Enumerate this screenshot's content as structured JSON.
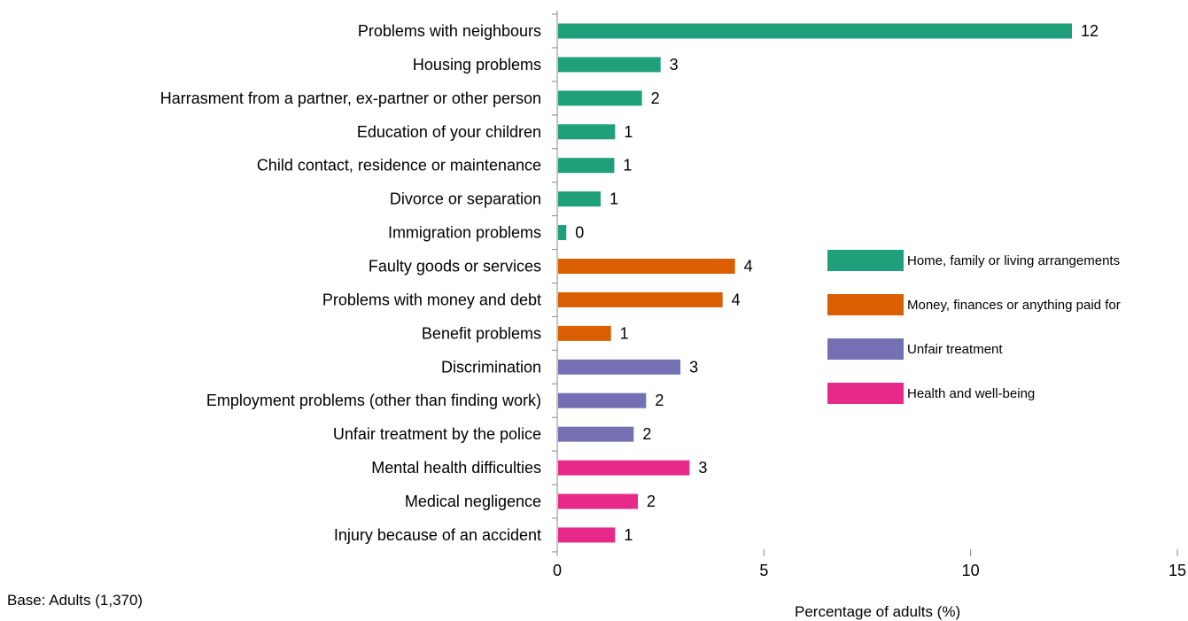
{
  "chart_data": {
    "type": "bar",
    "orientation": "horizontal",
    "categories": [
      "Problems with neighbours",
      "Housing problems",
      "Harrasment from a partner, ex-partner or other person",
      "Education of your children",
      "Child contact, residence or maintenance",
      "Divorce or separation",
      "Immigration problems",
      "Faulty goods or services",
      "Problems with money and debt",
      "Benefit problems",
      "Discrimination",
      "Employment problems (other than finding work)",
      "Unfair treatment by the police",
      "Mental health difficulties",
      "Medical negligence",
      "Injury because of an accident"
    ],
    "values": [
      12.45,
      2.5,
      2.05,
      1.4,
      1.38,
      1.05,
      0.22,
      4.3,
      4.0,
      1.3,
      2.98,
      2.15,
      1.85,
      3.2,
      1.95,
      1.4
    ],
    "value_labels": [
      "12",
      "3",
      "2",
      "1",
      "1",
      "1",
      "0",
      "4",
      "4",
      "1",
      "3",
      "2",
      "2",
      "3",
      "2",
      "1"
    ],
    "groups": [
      0,
      0,
      0,
      0,
      0,
      0,
      0,
      1,
      1,
      1,
      2,
      2,
      2,
      3,
      3,
      3
    ],
    "legend": [
      {
        "name": "Home, family or living arrangements",
        "color": "#1fa07a"
      },
      {
        "name": "Money, finances or anything paid for",
        "color": "#d95f02"
      },
      {
        "name": "Unfair treatment",
        "color": "#7570b3"
      },
      {
        "name": "Health and well-being",
        "color": "#e7298a"
      }
    ],
    "legend_position": "right",
    "xlim": [
      0,
      15
    ],
    "xticks": [
      0,
      5,
      10,
      15
    ],
    "xtick_labels": [
      "0",
      "5",
      "10",
      "15"
    ],
    "xlabel": "Percentage of adults (%)",
    "grid": false
  },
  "notes": {
    "base": "Base: Adults (1,370)"
  }
}
